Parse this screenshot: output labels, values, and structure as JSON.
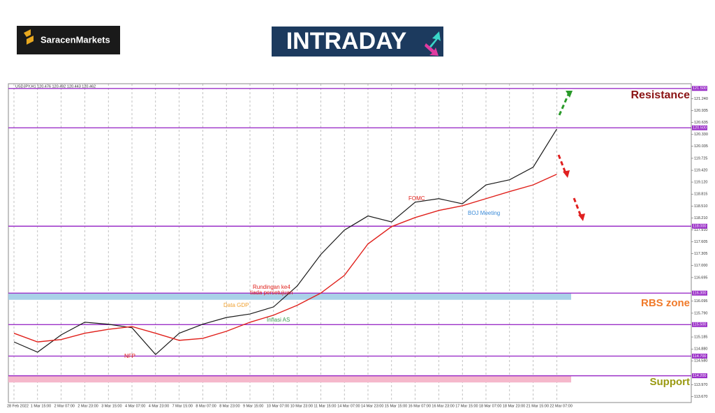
{
  "header": {
    "brand": "SaracenMarkets",
    "logo": "INTRADAY"
  },
  "chart_data": {
    "type": "line",
    "symbol_info": "USDJPY,H1 120.476 120.492 120.443 120.462",
    "categories": [
      "28 Feb 2022",
      "1 Mar 15:00",
      "2 Mar 07:00",
      "2 Mar 23:00",
      "3 Mar 15:00",
      "4 Mar 07:00",
      "4 Mar 23:00",
      "7 Mar 15:00",
      "8 Mar 07:00",
      "8 Mar 23:00",
      "9 Mar 15:00",
      "10 Mar 07:00",
      "10 Mar 23:00",
      "11 Mar 15:00",
      "14 Mar 07:00",
      "14 Mar 23:00",
      "15 Mar 15:00",
      "16 Mar 07:00",
      "16 Mar 23:00",
      "17 Mar 15:00",
      "18 Mar 07:00",
      "18 Mar 23:00",
      "21 Mar 15:00",
      "22 Mar 07:00"
    ],
    "series": [
      {
        "color": "#1a1a1a",
        "values": [
          115.06,
          114.8,
          115.24,
          115.56,
          115.51,
          115.42,
          114.74,
          115.28,
          115.51,
          115.68,
          115.77,
          115.95,
          116.48,
          117.28,
          117.9,
          118.26,
          118.11,
          118.61,
          118.7,
          118.57,
          119.05,
          119.18,
          119.5,
          120.47
        ]
      },
      {
        "color": "#e0201b",
        "values": [
          115.28,
          115.06,
          115.12,
          115.28,
          115.38,
          115.45,
          115.28,
          115.1,
          115.15,
          115.33,
          115.56,
          115.74,
          115.99,
          116.3,
          116.75,
          117.55,
          117.99,
          118.22,
          118.4,
          118.52,
          118.7,
          118.88,
          119.05,
          119.32
        ]
      }
    ],
    "ylim": [
      113.52,
      121.62
    ],
    "yticks": [
      {
        "value": 121.24,
        "label": "121.240"
      },
      {
        "value": 120.935,
        "label": "120.935"
      },
      {
        "value": 120.635,
        "label": "120.635"
      },
      {
        "value": 120.33,
        "label": "120.330"
      },
      {
        "value": 120.035,
        "label": "120.035"
      },
      {
        "value": 119.725,
        "label": "119.725"
      },
      {
        "value": 119.42,
        "label": "119.420"
      },
      {
        "value": 119.12,
        "label": "119.120"
      },
      {
        "value": 118.815,
        "label": "118.815"
      },
      {
        "value": 118.51,
        "label": "118.510"
      },
      {
        "value": 118.21,
        "label": "118.210"
      },
      {
        "value": 117.91,
        "label": "117.910"
      },
      {
        "value": 117.605,
        "label": "117.605"
      },
      {
        "value": 117.305,
        "label": "117.305"
      },
      {
        "value": 117,
        "label": "117.000"
      },
      {
        "value": 116.695,
        "label": "116.695"
      },
      {
        "value": 116.095,
        "label": "116.095"
      },
      {
        "value": 115.79,
        "label": "115.790"
      },
      {
        "value": 115.185,
        "label": "115.185"
      },
      {
        "value": 114.88,
        "label": "114.880"
      },
      {
        "value": 114.58,
        "label": "114.580"
      },
      {
        "value": 113.97,
        "label": "113.970"
      },
      {
        "value": 113.67,
        "label": "113.670"
      }
    ],
    "levels": [
      {
        "value": 121.5,
        "label": "121.500"
      },
      {
        "value": 120.5,
        "label": "120.500"
      },
      {
        "value": 118,
        "label": "118.000"
      },
      {
        "value": 116.3,
        "label": "116.300"
      },
      {
        "value": 115.5,
        "label": "115.500"
      },
      {
        "value": 114.7,
        "label": "114.700"
      },
      {
        "value": 114.2,
        "label": "114.200"
      }
    ],
    "level_color": "#9b30c8",
    "zones": [
      {
        "from": 116.3,
        "to": 116.13,
        "color": "#a9d1e8"
      },
      {
        "from": 114.2,
        "to": 114.03,
        "color": "#f5b8cb"
      }
    ],
    "zone_labels": [
      {
        "text": "Resistance",
        "color": "#8b1414"
      },
      {
        "text": "RBS zone",
        "color": "#f07a2a"
      },
      {
        "text": "Support",
        "color": "#9a9a12"
      }
    ],
    "annotations": [
      {
        "text": "FOMC",
        "color": "#e0201b"
      },
      {
        "text": "BOJ Meeting",
        "color": "#3a8ad8"
      },
      {
        "text": "Rundingan ke4",
        "color": "#e0201b"
      },
      {
        "text": "tiada persetujuan",
        "color": "#e0201b"
      },
      {
        "text": "Data GDP",
        "color": "#f0a030"
      },
      {
        "text": "Inflasi AS",
        "color": "#3a9a50"
      },
      {
        "text": "NFP",
        "color": "#e0201b"
      }
    ],
    "grid": true
  }
}
